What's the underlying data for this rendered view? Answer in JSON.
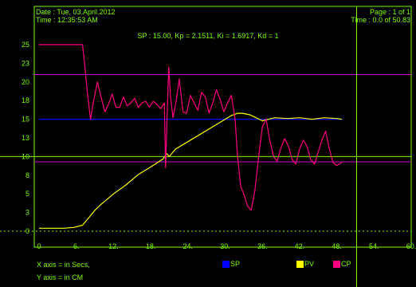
{
  "header": {
    "date": "Date : Tue, 03.April.2012",
    "time": "Time : 12:35:53 AM",
    "page": "Page : 1 of 1",
    "time_range": "Time : 0.0 of 50.83",
    "params": "SP : 15.00, Kp = 2.1511, Ki = 1.6917, Kd = 1"
  },
  "notes": {
    "x_axis": "X axis = in Secs,",
    "y_axis": "Y axis = in CM"
  },
  "colors": {
    "background": "#000000",
    "text": "#7CFC00",
    "frame": "#7CFC00",
    "sp": "#0000FF",
    "pv": "#FFFF00",
    "cp": "#FF007F",
    "limits": "#CC00CC",
    "marker": "#7CFC00"
  },
  "chart_data": {
    "type": "line",
    "x_ticks": [
      "0",
      "6.",
      "12.",
      "18.",
      "24.",
      "30.",
      "36.",
      "42.",
      "48.",
      "54.",
      "60."
    ],
    "y_ticks": [
      "0",
      "3",
      "5",
      "8",
      "10",
      "13",
      "15",
      "18",
      "20",
      "23",
      "25"
    ],
    "xlim": [
      0,
      60
    ],
    "ylim": [
      0,
      27.5
    ],
    "legend": [
      "SP",
      "PV",
      "CP"
    ],
    "legend_placement": "bottom",
    "series": [
      {
        "name": "SP",
        "x": [
          0,
          48.9
        ],
        "y": [
          15,
          15
        ]
      },
      {
        "name": "PV",
        "x": [
          0,
          4,
          5.6,
          7,
          8,
          9,
          10,
          12,
          14,
          16,
          18,
          20,
          20.6,
          21,
          22,
          24,
          26,
          28,
          30,
          31,
          32,
          32.8,
          34,
          35,
          36,
          37,
          38,
          40,
          42,
          44,
          46,
          48,
          48.8
        ],
        "y": [
          0.4,
          0.4,
          0.5,
          0.8,
          1.8,
          2.8,
          3.6,
          5.0,
          6.2,
          7.6,
          8.6,
          9.7,
          10.4,
          10.0,
          11.0,
          12.0,
          13.0,
          14.0,
          15.0,
          15.5,
          15.8,
          15.8,
          15.6,
          15.2,
          14.8,
          15.0,
          15.2,
          15.1,
          15.2,
          15.0,
          15.2,
          15.1,
          15.0
        ]
      },
      {
        "name": "CP",
        "x": [
          0,
          7,
          7.4,
          7.8,
          8.3,
          8.8,
          9.4,
          10.0,
          10.6,
          11.2,
          11.8,
          12.4,
          13.0,
          13.6,
          14.2,
          14.8,
          15.4,
          16.0,
          16.6,
          17.2,
          17.8,
          18.4,
          19.0,
          19.6,
          20.2,
          20.4,
          20.6,
          20.9,
          21.2,
          21.6,
          22.1,
          22.6,
          23.2,
          23.8,
          24.4,
          25.0,
          25.6,
          26.2,
          26.8,
          27.4,
          28.0,
          28.6,
          29.2,
          29.8,
          30.4,
          31.0,
          31.6,
          32.0,
          32.5,
          33.0,
          33.6,
          34.2,
          34.8,
          35.4,
          36.0,
          36.6,
          37.2,
          37.8,
          38.4,
          39.0,
          39.6,
          40.2,
          40.8,
          41.4,
          42.0,
          42.6,
          43.2,
          43.8,
          44.4,
          45.0,
          45.6,
          46.2,
          46.8,
          47.4,
          48.0,
          48.8
        ],
        "y": [
          25,
          25,
          22,
          18.5,
          15,
          17.5,
          20,
          18,
          16,
          17,
          18.4,
          16.6,
          16.6,
          18,
          16.8,
          17.2,
          17.8,
          16.6,
          17.2,
          17.4,
          16.6,
          17.4,
          17.0,
          16.4,
          17.2,
          8.5,
          14,
          22,
          18,
          15.2,
          17.4,
          20.4,
          16.0,
          15.8,
          18.2,
          17.2,
          16.2,
          18.6,
          18.0,
          15.8,
          17.2,
          19.0,
          17.6,
          16.0,
          17.2,
          18.2,
          15.0,
          10.0,
          6.0,
          5.0,
          3.4,
          2.8,
          5.5,
          10.0,
          14.0,
          15.0,
          12.2,
          10.0,
          9.4,
          11.2,
          12.4,
          11.4,
          9.6,
          9.0,
          11.0,
          12.2,
          11.4,
          9.6,
          9.0,
          10.6,
          12.2,
          13.4,
          11.0,
          9.2,
          8.8,
          9.2
        ]
      }
    ],
    "reference_lines": [
      {
        "kind": "horizontal",
        "y": 21.0
      },
      {
        "kind": "horizontal",
        "y": 9.3
      },
      {
        "kind": "horizontal",
        "y": 10.0
      },
      {
        "kind": "horizontal",
        "y": 0.0
      },
      {
        "kind": "vertical",
        "x": 51.2
      }
    ]
  }
}
